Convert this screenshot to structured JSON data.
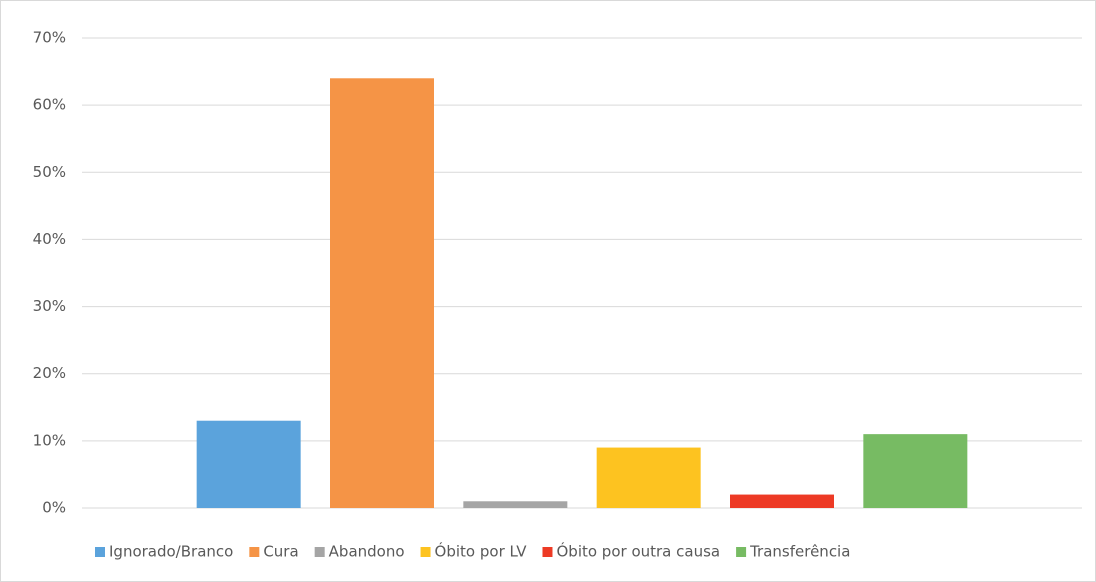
{
  "chart_data": {
    "type": "bar",
    "categories": [
      null
    ],
    "series": [
      {
        "name": "Ignorado/Branco",
        "color": "#5ba3dc",
        "values": [
          13
        ]
      },
      {
        "name": "Cura",
        "color": "#f59446",
        "values": [
          64
        ]
      },
      {
        "name": "Abandono",
        "color": "#a5a5a5",
        "values": [
          1
        ]
      },
      {
        "name": "Óbito por LV",
        "color": "#fdc320",
        "values": [
          9
        ]
      },
      {
        "name": "Óbito por outra causa",
        "color": "#ed3a25",
        "values": [
          2
        ]
      },
      {
        "name": "Transferência",
        "color": "#77bb63",
        "values": [
          11
        ]
      }
    ],
    "ylim": [
      0,
      70
    ],
    "yticks": [
      {
        "value": 0,
        "label": "0%"
      },
      {
        "value": 10,
        "label": "10%"
      },
      {
        "value": 20,
        "label": "20%"
      },
      {
        "value": 30,
        "label": "30%"
      },
      {
        "value": 40,
        "label": "40%"
      },
      {
        "value": 50,
        "label": "50%"
      },
      {
        "value": 60,
        "label": "60%"
      },
      {
        "value": 70,
        "label": "70%"
      }
    ],
    "grid": true,
    "legend": "bottom"
  }
}
